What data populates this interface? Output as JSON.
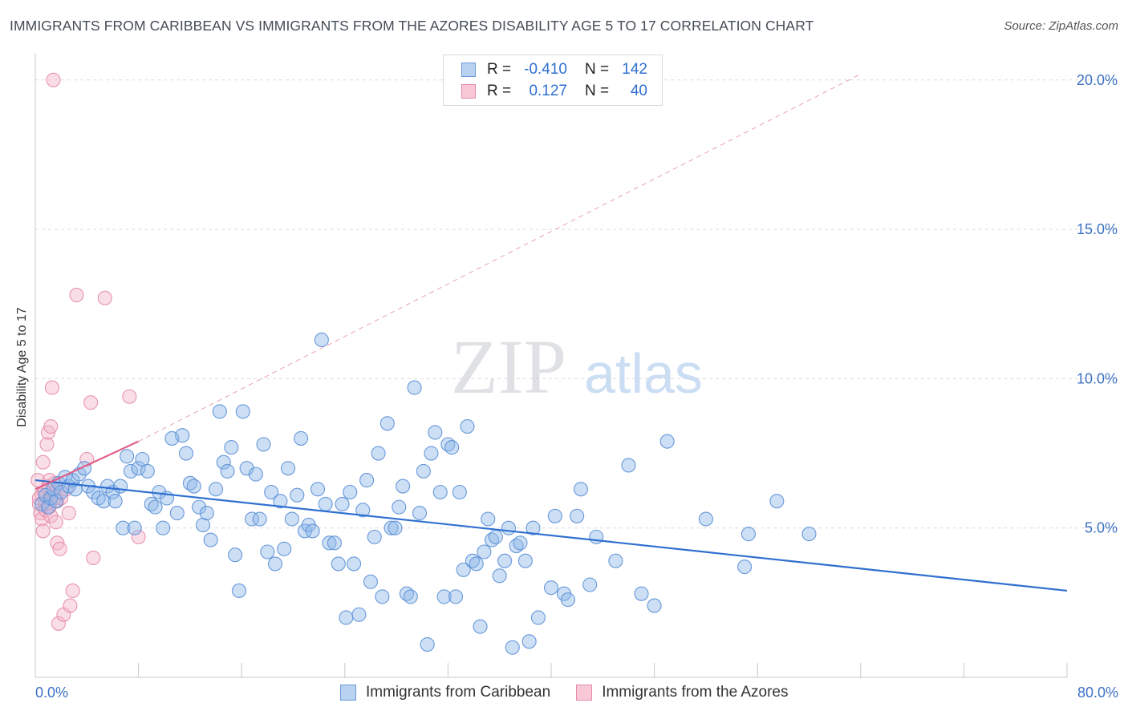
{
  "chart_data": {
    "type": "scatter",
    "title": "IMMIGRANTS FROM CARIBBEAN VS IMMIGRANTS FROM THE AZORES DISABILITY AGE 5 TO 17 CORRELATION CHART",
    "source": "Source: ZipAtlas.com",
    "xlabel": "",
    "ylabel": "Disability Age 5 to 17",
    "xlim": [
      0,
      80
    ],
    "ylim": [
      0,
      20.8
    ],
    "x_tick_labels": {
      "min": "0.0%",
      "max": "80.0%"
    },
    "y_ticks": [
      {
        "value": 5,
        "label": "5.0%"
      },
      {
        "value": 10,
        "label": "10.0%"
      },
      {
        "value": 15,
        "label": "15.0%"
      },
      {
        "value": 20,
        "label": "20.0%"
      }
    ],
    "grid": true,
    "legend_position": "top-center",
    "watermark": {
      "zip": "ZIP",
      "atlas": "atlas"
    },
    "legend": [
      {
        "r_label": "R =",
        "r_value": "-0.410",
        "n_label": "N =",
        "n_value": "142"
      },
      {
        "r_label": "R =",
        "r_value": "0.127",
        "n_label": "N =",
        "n_value": "40"
      }
    ],
    "series": [
      {
        "name": "Immigrants from Caribbean",
        "color": "#8fb8e8",
        "stroke": "#5a8fd6",
        "trend_color": "#2f6fd0",
        "trend": {
          "x0": 0,
          "y0": 6.6,
          "x1": 80,
          "y1": 2.9
        },
        "points": [
          [
            0.5,
            5.8
          ],
          [
            0.8,
            6.1
          ],
          [
            1.0,
            5.7
          ],
          [
            1.2,
            6.0
          ],
          [
            1.4,
            6.3
          ],
          [
            1.6,
            5.9
          ],
          [
            1.8,
            6.5
          ],
          [
            2.0,
            6.2
          ],
          [
            2.3,
            6.7
          ],
          [
            2.6,
            6.4
          ],
          [
            2.9,
            6.6
          ],
          [
            3.1,
            6.3
          ],
          [
            3.4,
            6.8
          ],
          [
            3.8,
            7.0
          ],
          [
            4.1,
            6.4
          ],
          [
            4.5,
            6.2
          ],
          [
            4.9,
            6.0
          ],
          [
            5.3,
            5.9
          ],
          [
            5.6,
            6.4
          ],
          [
            6.0,
            6.2
          ],
          [
            6.2,
            5.9
          ],
          [
            6.6,
            6.4
          ],
          [
            6.8,
            5.0
          ],
          [
            7.1,
            7.4
          ],
          [
            7.4,
            6.9
          ],
          [
            7.7,
            5.0
          ],
          [
            8.0,
            7.0
          ],
          [
            8.3,
            7.3
          ],
          [
            8.7,
            6.9
          ],
          [
            9.0,
            5.8
          ],
          [
            9.3,
            5.7
          ],
          [
            9.6,
            6.2
          ],
          [
            9.9,
            5.0
          ],
          [
            10.2,
            6.0
          ],
          [
            10.6,
            8.0
          ],
          [
            11.0,
            5.5
          ],
          [
            11.4,
            8.1
          ],
          [
            11.7,
            7.5
          ],
          [
            12.0,
            6.5
          ],
          [
            12.3,
            6.4
          ],
          [
            12.7,
            5.7
          ],
          [
            13.0,
            5.1
          ],
          [
            13.3,
            5.5
          ],
          [
            13.6,
            4.6
          ],
          [
            14.0,
            6.3
          ],
          [
            14.3,
            8.9
          ],
          [
            14.6,
            7.2
          ],
          [
            14.9,
            6.9
          ],
          [
            15.2,
            7.7
          ],
          [
            15.5,
            4.1
          ],
          [
            15.8,
            2.9
          ],
          [
            16.1,
            8.9
          ],
          [
            16.4,
            7.0
          ],
          [
            16.8,
            5.3
          ],
          [
            17.1,
            6.8
          ],
          [
            17.4,
            5.3
          ],
          [
            17.7,
            7.8
          ],
          [
            18.0,
            4.2
          ],
          [
            18.3,
            6.2
          ],
          [
            18.6,
            3.8
          ],
          [
            19.0,
            5.9
          ],
          [
            19.3,
            4.3
          ],
          [
            19.6,
            7.0
          ],
          [
            19.9,
            5.3
          ],
          [
            20.3,
            6.1
          ],
          [
            20.6,
            8.0
          ],
          [
            20.9,
            4.9
          ],
          [
            21.2,
            5.1
          ],
          [
            21.5,
            4.9
          ],
          [
            21.9,
            6.3
          ],
          [
            22.2,
            11.3
          ],
          [
            22.5,
            5.8
          ],
          [
            22.8,
            4.5
          ],
          [
            23.2,
            4.5
          ],
          [
            23.5,
            3.8
          ],
          [
            23.8,
            5.8
          ],
          [
            24.1,
            2.0
          ],
          [
            24.4,
            6.2
          ],
          [
            24.7,
            3.8
          ],
          [
            25.1,
            2.1
          ],
          [
            25.4,
            5.6
          ],
          [
            25.7,
            6.6
          ],
          [
            26.0,
            3.2
          ],
          [
            26.3,
            4.7
          ],
          [
            26.6,
            7.5
          ],
          [
            26.9,
            2.7
          ],
          [
            27.3,
            8.5
          ],
          [
            27.6,
            5.0
          ],
          [
            27.9,
            5.0
          ],
          [
            28.2,
            5.7
          ],
          [
            28.5,
            6.4
          ],
          [
            28.8,
            2.8
          ],
          [
            29.1,
            2.7
          ],
          [
            29.4,
            9.7
          ],
          [
            29.8,
            5.5
          ],
          [
            30.1,
            6.9
          ],
          [
            30.4,
            1.1
          ],
          [
            30.7,
            7.5
          ],
          [
            31.0,
            8.2
          ],
          [
            31.4,
            6.2
          ],
          [
            31.7,
            2.7
          ],
          [
            32.0,
            7.8
          ],
          [
            32.3,
            7.7
          ],
          [
            32.6,
            2.7
          ],
          [
            32.9,
            6.2
          ],
          [
            33.2,
            3.6
          ],
          [
            33.5,
            8.4
          ],
          [
            33.9,
            3.9
          ],
          [
            34.2,
            3.8
          ],
          [
            34.5,
            1.7
          ],
          [
            34.8,
            4.2
          ],
          [
            35.1,
            5.3
          ],
          [
            35.4,
            4.6
          ],
          [
            35.7,
            4.7
          ],
          [
            36.0,
            3.4
          ],
          [
            36.4,
            3.9
          ],
          [
            36.7,
            5.0
          ],
          [
            37.0,
            1.0
          ],
          [
            37.3,
            4.4
          ],
          [
            37.6,
            4.5
          ],
          [
            38.0,
            3.9
          ],
          [
            38.3,
            1.2
          ],
          [
            38.6,
            5.0
          ],
          [
            39.0,
            2.0
          ],
          [
            40.0,
            3.0
          ],
          [
            40.3,
            5.4
          ],
          [
            41.0,
            2.8
          ],
          [
            41.3,
            2.6
          ],
          [
            42.0,
            5.4
          ],
          [
            42.3,
            6.3
          ],
          [
            43.0,
            3.1
          ],
          [
            43.5,
            4.7
          ],
          [
            45.0,
            3.9
          ],
          [
            46.0,
            7.1
          ],
          [
            47.0,
            2.8
          ],
          [
            48.0,
            2.4
          ],
          [
            49.0,
            7.9
          ],
          [
            52.0,
            5.3
          ],
          [
            55.0,
            3.7
          ],
          [
            55.3,
            4.8
          ],
          [
            57.5,
            5.9
          ],
          [
            60.0,
            4.8
          ]
        ]
      },
      {
        "name": "Immigrants from the Azores",
        "color": "#f5b6c9",
        "stroke": "#e58aa8",
        "trend_color": "#e0608a",
        "trend": {
          "x0": 0,
          "y0": 6.3,
          "x1": 8,
          "y1": 7.9
        },
        "trend_ext": {
          "x0": 8,
          "y0": 7.9,
          "x1": 64,
          "y1": 20.2
        },
        "points": [
          [
            0.2,
            6.6
          ],
          [
            0.3,
            5.8
          ],
          [
            0.4,
            5.5
          ],
          [
            0.5,
            6.1
          ],
          [
            0.5,
            5.3
          ],
          [
            0.6,
            4.9
          ],
          [
            0.7,
            6.2
          ],
          [
            0.8,
            5.6
          ],
          [
            0.9,
            7.8
          ],
          [
            1.0,
            8.2
          ],
          [
            1.0,
            6.4
          ],
          [
            1.1,
            5.7
          ],
          [
            1.2,
            8.4
          ],
          [
            1.2,
            5.4
          ],
          [
            1.3,
            9.7
          ],
          [
            1.4,
            20.0
          ],
          [
            1.5,
            6.5
          ],
          [
            1.6,
            5.2
          ],
          [
            1.7,
            5.9
          ],
          [
            1.7,
            4.5
          ],
          [
            1.8,
            1.8
          ],
          [
            1.9,
            4.3
          ],
          [
            2.0,
            6.0
          ],
          [
            2.2,
            2.1
          ],
          [
            2.4,
            6.3
          ],
          [
            2.6,
            5.5
          ],
          [
            2.7,
            2.4
          ],
          [
            2.9,
            2.9
          ],
          [
            3.2,
            12.8
          ],
          [
            4.3,
            9.2
          ],
          [
            4.5,
            4.0
          ],
          [
            5.4,
            12.7
          ],
          [
            7.3,
            9.4
          ],
          [
            8.0,
            4.7
          ],
          [
            0.6,
            7.2
          ],
          [
            0.8,
            5.9
          ],
          [
            1.1,
            6.6
          ],
          [
            1.5,
            6.0
          ],
          [
            4.0,
            7.3
          ],
          [
            0.3,
            6.0
          ]
        ]
      }
    ]
  }
}
